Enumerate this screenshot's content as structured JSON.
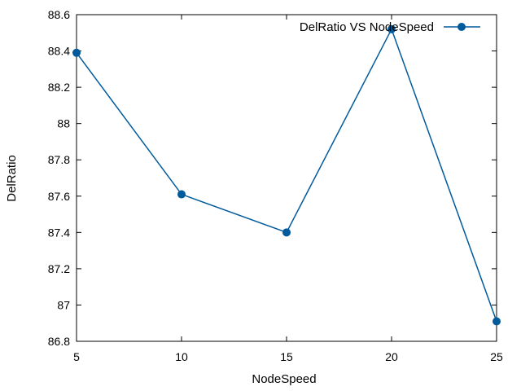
{
  "chart_data": {
    "type": "line",
    "title": "",
    "xlabel": "NodeSpeed",
    "ylabel": "DelRatio",
    "x": [
      5,
      10,
      15,
      20,
      25
    ],
    "series": [
      {
        "name": "DelRatio VS NodeSpeed",
        "values": [
          88.39,
          87.61,
          87.4,
          88.52,
          86.91
        ],
        "color": "#005a9c"
      }
    ],
    "xlim": [
      5,
      25
    ],
    "ylim": [
      86.8,
      88.6
    ],
    "xticks": [
      5,
      10,
      15,
      20,
      25
    ],
    "xtick_labels": [
      "5",
      "10",
      "15",
      "20",
      "25"
    ],
    "yticks": [
      86.8,
      87.0,
      87.2,
      87.4,
      87.6,
      87.8,
      88.0,
      88.2,
      88.4,
      88.6
    ],
    "ytick_labels": [
      "86.8",
      "87",
      "87.2",
      "87.4",
      "87.6",
      "87.8",
      "88",
      "88.2",
      "88.4",
      "88.6"
    ],
    "grid": false,
    "legend_position": "top-right",
    "marker": "circle"
  }
}
